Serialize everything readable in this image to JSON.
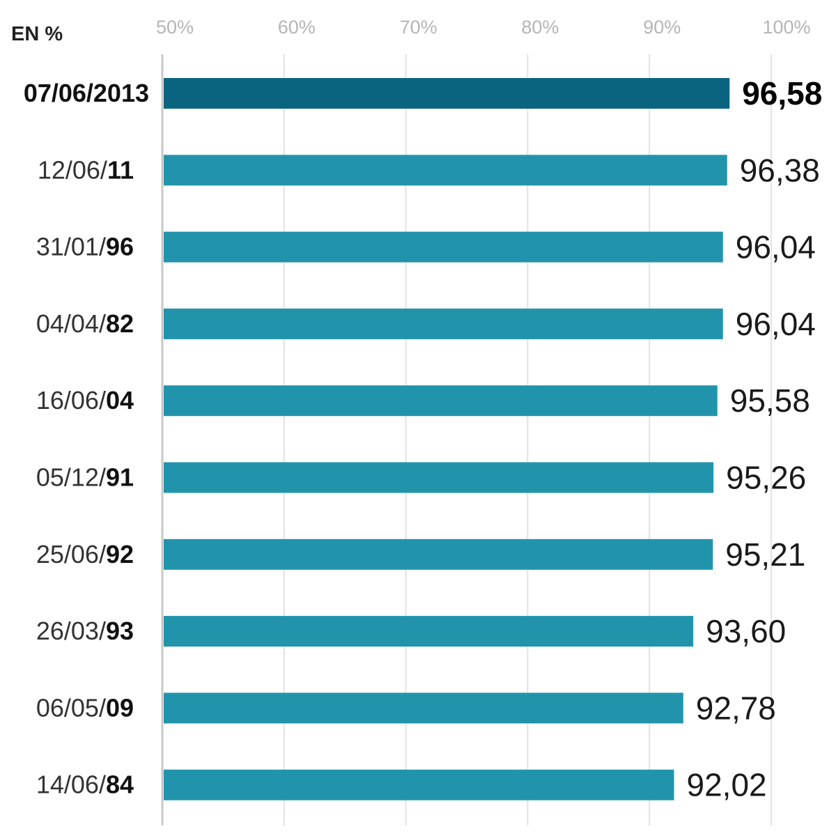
{
  "chart_data": {
    "type": "bar",
    "orientation": "horizontal",
    "unit_label": "EN %",
    "x_ticks": [
      "50%",
      "60%",
      "70%",
      "80%",
      "90%",
      "100%"
    ],
    "xlim": [
      50,
      100
    ],
    "grid": true,
    "categories": [
      {
        "prefix": "07/06/2013",
        "suffix": "",
        "highlight": true
      },
      {
        "prefix": "12/06/",
        "suffix": "11",
        "highlight": false
      },
      {
        "prefix": "31/01/",
        "suffix": "96",
        "highlight": false
      },
      {
        "prefix": "04/04/",
        "suffix": "82",
        "highlight": false
      },
      {
        "prefix": "16/06/",
        "suffix": "04",
        "highlight": false
      },
      {
        "prefix": "05/12/",
        "suffix": "91",
        "highlight": false
      },
      {
        "prefix": "25/06/",
        "suffix": "92",
        "highlight": false
      },
      {
        "prefix": "26/03/",
        "suffix": "93",
        "highlight": false
      },
      {
        "prefix": "06/05/",
        "suffix": "09",
        "highlight": false
      },
      {
        "prefix": "14/06/",
        "suffix": "84",
        "highlight": false
      }
    ],
    "values": [
      96.58,
      96.38,
      96.04,
      96.04,
      95.58,
      95.26,
      95.21,
      93.6,
      92.78,
      92.02
    ],
    "value_labels": [
      "96,58",
      "96,38",
      "96,04",
      "96,04",
      "95,58",
      "95,26",
      "95,21",
      "93,60",
      "92,78",
      "92,02"
    ],
    "colors": {
      "highlight_bar": "#0a6480",
      "bar": "#2194ac",
      "grid": "#e2e2e2",
      "axis": "#c8c8c8"
    }
  }
}
